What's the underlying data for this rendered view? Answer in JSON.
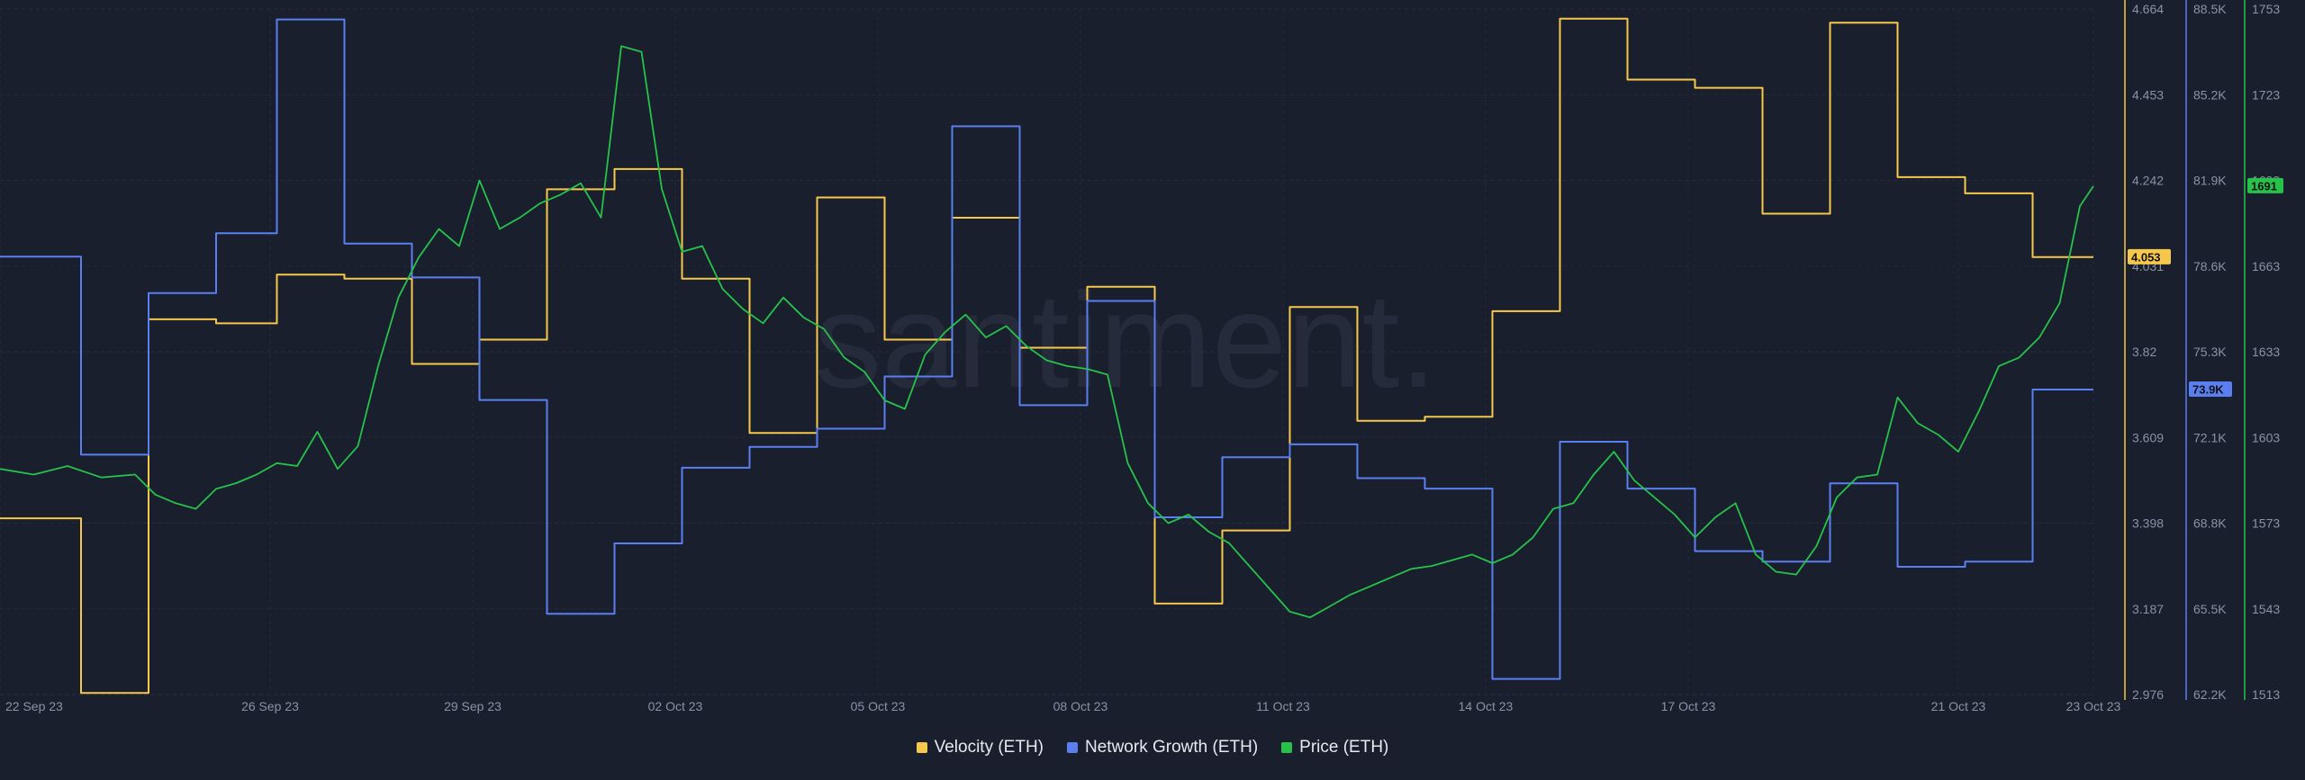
{
  "chart_data": {
    "type": "line",
    "watermark": "santiment.",
    "x_labels": [
      "22 Sep 23",
      "26 Sep 23",
      "29 Sep 23",
      "02 Oct 23",
      "05 Oct 23",
      "08 Oct 23",
      "11 Oct 23",
      "14 Oct 23",
      "17 Oct 23",
      "21 Oct 23",
      "23 Oct 23"
    ],
    "x_days": [
      0,
      4,
      7,
      10,
      13,
      16,
      19,
      22,
      25,
      29,
      31
    ],
    "x_range": [
      0,
      31
    ],
    "axes": {
      "velocity": {
        "ticks": [
          "4.664",
          "4.453",
          "4.242",
          "4.031",
          "3.82",
          "3.609",
          "3.398",
          "3.187",
          "2.976"
        ],
        "min": 2.976,
        "max": 4.664,
        "color": "#f5c84c"
      },
      "network": {
        "ticks": [
          "88.5K",
          "85.2K",
          "81.9K",
          "78.6K",
          "75.3K",
          "72.1K",
          "68.8K",
          "65.5K",
          "62.2K"
        ],
        "min": 62.2,
        "max": 88.5,
        "color": "#5b7ff0"
      },
      "price": {
        "ticks": [
          "1753",
          "1723",
          "1693",
          "1663",
          "1633",
          "1603",
          "1573",
          "1543",
          "1513"
        ],
        "min": 1513,
        "max": 1753,
        "color": "#26c24a"
      }
    },
    "series": [
      {
        "name": "Velocity (ETH)",
        "key": "velocity",
        "color": "#f5c84c",
        "step": true,
        "current_label": "4.053",
        "x": [
          0,
          1.2,
          1.2,
          2.2,
          2.2,
          3.2,
          3.2,
          4.1,
          4.1,
          5.1,
          5.1,
          6.1,
          6.1,
          7.1,
          7.1,
          8.1,
          8.1,
          9.1,
          9.1,
          10.1,
          10.1,
          11.1,
          11.1,
          12.1,
          12.1,
          13.1,
          13.1,
          14.1,
          14.1,
          15.1,
          15.1,
          16.1,
          16.1,
          17.1,
          17.1,
          18.1,
          18.1,
          19.1,
          19.1,
          20.1,
          20.1,
          21.1,
          21.1,
          22.1,
          22.1,
          23.1,
          23.1,
          24.1,
          24.1,
          25.1,
          25.1,
          26.1,
          26.1,
          27.1,
          27.1,
          28.1,
          28.1,
          29.1,
          29.1,
          30.1,
          30.1,
          31
        ],
        "values": [
          3.41,
          3.41,
          2.98,
          2.98,
          3.9,
          3.9,
          3.89,
          3.89,
          4.01,
          4.01,
          4.0,
          4.0,
          3.79,
          3.79,
          3.85,
          3.85,
          4.22,
          4.22,
          4.27,
          4.27,
          4.0,
          4.0,
          3.62,
          3.62,
          4.2,
          4.2,
          3.85,
          3.85,
          4.15,
          4.15,
          3.83,
          3.83,
          3.98,
          3.98,
          3.2,
          3.2,
          3.38,
          3.38,
          3.93,
          3.93,
          3.65,
          3.65,
          3.66,
          3.66,
          3.92,
          3.92,
          4.64,
          4.64,
          4.49,
          4.49,
          4.47,
          4.47,
          4.16,
          4.16,
          4.63,
          4.63,
          4.25,
          4.25,
          4.21,
          4.21,
          4.053,
          4.053
        ]
      },
      {
        "name": "Network Growth (ETH)",
        "key": "network",
        "color": "#5b7ff0",
        "step": true,
        "current_label": "73.9K",
        "x": [
          0,
          1.2,
          1.2,
          2.2,
          2.2,
          3.2,
          3.2,
          4.1,
          4.1,
          5.1,
          5.1,
          6.1,
          6.1,
          7.1,
          7.1,
          8.1,
          8.1,
          9.1,
          9.1,
          10.1,
          10.1,
          11.1,
          11.1,
          12.1,
          12.1,
          13.1,
          13.1,
          14.1,
          14.1,
          15.1,
          15.1,
          16.1,
          16.1,
          17.1,
          17.1,
          18.1,
          18.1,
          19.1,
          19.1,
          20.1,
          20.1,
          21.1,
          21.1,
          22.1,
          22.1,
          23.1,
          23.1,
          24.1,
          24.1,
          25.1,
          25.1,
          26.1,
          26.1,
          27.1,
          27.1,
          28.1,
          28.1,
          29.1,
          29.1,
          30.1,
          30.1,
          31
        ],
        "values": [
          79.0,
          79.0,
          71.4,
          71.4,
          77.6,
          77.6,
          79.9,
          79.9,
          88.1,
          88.1,
          79.5,
          79.5,
          78.2,
          78.2,
          73.5,
          73.5,
          65.3,
          65.3,
          68.0,
          68.0,
          70.9,
          70.9,
          71.7,
          71.7,
          72.4,
          72.4,
          74.4,
          74.4,
          84.0,
          84.0,
          73.3,
          73.3,
          77.3,
          77.3,
          69.0,
          69.0,
          71.3,
          71.3,
          71.8,
          71.8,
          70.5,
          70.5,
          70.1,
          70.1,
          62.8,
          62.8,
          71.9,
          71.9,
          70.1,
          70.1,
          67.7,
          67.7,
          67.3,
          67.3,
          70.3,
          70.3,
          67.1,
          67.1,
          67.3,
          67.3,
          73.9,
          73.9
        ]
      },
      {
        "name": "Price (ETH)",
        "key": "price",
        "color": "#26c24a",
        "step": false,
        "current_label": "1691",
        "x": [
          0,
          0.5,
          1,
          1.5,
          2,
          2.3,
          2.6,
          2.9,
          3.2,
          3.5,
          3.8,
          4.1,
          4.4,
          4.7,
          5.0,
          5.3,
          5.6,
          5.9,
          6.2,
          6.5,
          6.8,
          7.1,
          7.4,
          7.7,
          8.0,
          8.3,
          8.6,
          8.9,
          9.2,
          9.5,
          9.8,
          10.1,
          10.4,
          10.7,
          11.0,
          11.3,
          11.6,
          11.9,
          12.2,
          12.5,
          12.8,
          13.1,
          13.4,
          13.7,
          14.0,
          14.3,
          14.6,
          14.9,
          15.2,
          15.5,
          15.8,
          16.1,
          16.4,
          16.7,
          17.0,
          17.3,
          17.6,
          17.9,
          18.2,
          18.5,
          18.8,
          19.1,
          19.4,
          19.7,
          20.0,
          20.3,
          20.6,
          20.9,
          21.2,
          21.5,
          21.8,
          22.1,
          22.4,
          22.7,
          23.0,
          23.3,
          23.6,
          23.9,
          24.2,
          24.5,
          24.8,
          25.1,
          25.4,
          25.7,
          26.0,
          26.3,
          26.6,
          26.9,
          27.2,
          27.5,
          27.8,
          28.1,
          28.4,
          28.7,
          29.0,
          29.3,
          29.6,
          29.9,
          30.2,
          30.5,
          30.8,
          31
        ],
        "values": [
          1592,
          1590,
          1593,
          1589,
          1590,
          1583,
          1580,
          1578,
          1585,
          1587,
          1590,
          1594,
          1593,
          1605,
          1592,
          1600,
          1628,
          1652,
          1666,
          1676,
          1670,
          1693,
          1676,
          1680,
          1685,
          1688,
          1692,
          1680,
          1740,
          1738,
          1690,
          1668,
          1670,
          1655,
          1648,
          1643,
          1652,
          1645,
          1641,
          1631,
          1626,
          1616,
          1613,
          1632,
          1640,
          1646,
          1638,
          1642,
          1635,
          1630,
          1628,
          1627,
          1625,
          1594,
          1580,
          1573,
          1576,
          1570,
          1566,
          1558,
          1550,
          1542,
          1540,
          1544,
          1548,
          1551,
          1554,
          1557,
          1558,
          1560,
          1562,
          1559,
          1562,
          1568,
          1578,
          1580,
          1590,
          1598,
          1588,
          1582,
          1576,
          1568,
          1575,
          1580,
          1562,
          1556,
          1555,
          1565,
          1582,
          1589,
          1590,
          1617,
          1608,
          1604,
          1598,
          1612,
          1628,
          1631,
          1638,
          1650,
          1684,
          1691
        ]
      }
    ]
  },
  "legend": [
    {
      "label": "Velocity (ETH)",
      "color": "#f5c84c"
    },
    {
      "label": "Network Growth (ETH)",
      "color": "#5b7ff0"
    },
    {
      "label": "Price (ETH)",
      "color": "#26c24a"
    }
  ]
}
